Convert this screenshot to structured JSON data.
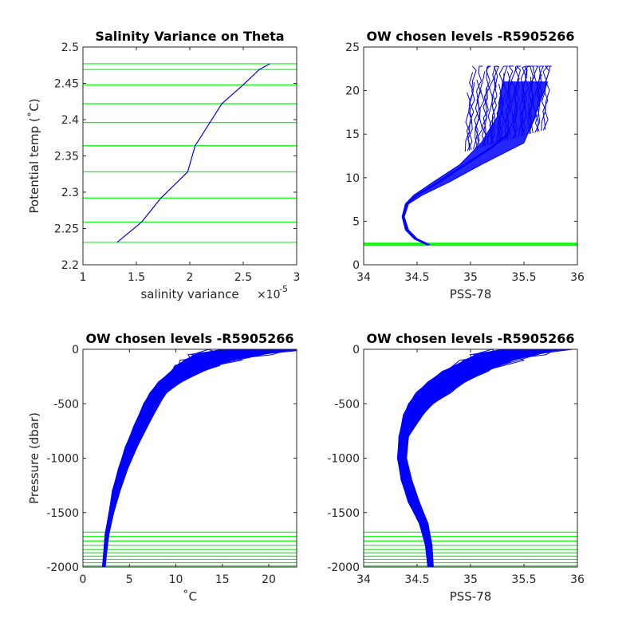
{
  "chart_data": [
    {
      "id": "panel1",
      "type": "line",
      "title": "Salinity Variance on Theta",
      "xlabel": "salinity variance",
      "x_exponent_label": "×10",
      "x_exponent": "-5",
      "ylabel": "Potential temp (˚C)",
      "xlim": [
        1,
        3
      ],
      "ylim": [
        2.2,
        2.5
      ],
      "xticks": [
        1,
        1.5,
        2,
        2.5,
        3
      ],
      "xtick_labels": [
        "1",
        "1.5",
        "2",
        "2.5",
        "3"
      ],
      "yticks": [
        2.2,
        2.25,
        2.3,
        2.35,
        2.4,
        2.45,
        2.5
      ],
      "ytick_labels": [
        "2.2",
        "2.25",
        "2.3",
        "2.35",
        "2.4",
        "2.45",
        "2.5"
      ],
      "series_color": "#0000ff",
      "level_color": "#00ff00",
      "x": [
        1.32,
        1.55,
        1.73,
        1.98,
        2.05,
        2.3,
        2.5,
        2.65,
        2.75
      ],
      "y": [
        2.231,
        2.259,
        2.292,
        2.328,
        2.364,
        2.422,
        2.448,
        2.469,
        2.477
      ],
      "level_lines": [
        2.231,
        2.259,
        2.292,
        2.328,
        2.364,
        2.396,
        2.422,
        2.448,
        2.469,
        2.477
      ]
    },
    {
      "id": "panel2",
      "type": "line",
      "title": "OW chosen levels -R5905266",
      "xlabel": "PSS-78",
      "ylabel": "",
      "xlim": [
        34,
        36
      ],
      "ylim": [
        0,
        25
      ],
      "xticks": [
        34,
        34.5,
        35,
        35.5,
        36
      ],
      "xtick_labels": [
        "34",
        "34.5",
        "35",
        "35.5",
        "36"
      ],
      "yticks": [
        0,
        5,
        10,
        15,
        20,
        25
      ],
      "ytick_labels": [
        "0",
        "5",
        "10",
        "15",
        "20",
        "25"
      ],
      "series_color": "#0000ff",
      "level_color": "#00ff00",
      "x": [
        34.6,
        34.48,
        34.4,
        34.37,
        34.4,
        34.5,
        34.7,
        34.95,
        35.2,
        35.35
      ],
      "y": [
        2.3,
        3.0,
        4.0,
        5.5,
        7.0,
        8.0,
        9.5,
        11.5,
        13.5,
        15.0
      ],
      "envelope": {
        "min_x": [
          34.6,
          34.47,
          34.39,
          34.36,
          34.39,
          34.47,
          34.65,
          34.9,
          35.1,
          35.25,
          35.3
        ],
        "max_x": [
          34.62,
          34.5,
          34.42,
          34.38,
          34.42,
          34.55,
          34.8,
          35.1,
          35.5,
          35.6,
          35.72
        ],
        "y": [
          2.3,
          3.0,
          4.0,
          5.5,
          7.0,
          8.0,
          9.5,
          11.5,
          14.0,
          17.0,
          21.0
        ],
        "spread_top": [
          34.95,
          35.75,
          15.5,
          23.0
        ]
      },
      "level_lines": [
        2.23,
        2.26,
        2.29,
        2.33,
        2.36,
        2.4,
        2.42,
        2.45,
        2.47,
        2.48
      ]
    },
    {
      "id": "panel3",
      "type": "line",
      "title": "OW chosen levels -R5905266",
      "xlabel": "˚C",
      "ylabel": "Pressure (dbar)",
      "xlim": [
        0,
        23
      ],
      "ylim": [
        -2000,
        0
      ],
      "xticks": [
        0,
        5,
        10,
        15,
        20
      ],
      "xtick_labels": [
        "0",
        "5",
        "10",
        "15",
        "20"
      ],
      "yticks": [
        -2000,
        -1500,
        -1000,
        -500,
        0
      ],
      "ytick_labels": [
        "-2000",
        "-1500",
        "-1000",
        "-500",
        "0"
      ],
      "series_color": "#0000ff",
      "level_color": "#00ff00",
      "envelope": {
        "p": [
          0,
          -50,
          -100,
          -150,
          -200,
          -300,
          -400,
          -500,
          -700,
          -900,
          -1100,
          -1300,
          -1500,
          -1700,
          -1900,
          -2000
        ],
        "min_x": [
          15,
          12,
          11,
          10,
          9.5,
          8.2,
          7.2,
          6.6,
          5.5,
          4.6,
          3.8,
          3.2,
          2.8,
          2.4,
          2.2,
          2.1
        ],
        "max_x": [
          23,
          19,
          16,
          14.5,
          13,
          10.5,
          9,
          8.2,
          7.0,
          5.8,
          4.8,
          4.0,
          3.3,
          2.8,
          2.5,
          2.4
        ]
      },
      "level_lines": [
        -1680,
        -1720,
        -1760,
        -1800,
        -1840,
        -1870,
        -1900,
        -1930,
        -1960,
        -1990
      ]
    },
    {
      "id": "panel4",
      "type": "line",
      "title": "OW chosen levels -R5905266",
      "xlabel": "PSS-78",
      "ylabel": "",
      "xlim": [
        34,
        36
      ],
      "ylim": [
        -2000,
        0
      ],
      "xticks": [
        34,
        34.5,
        35,
        35.5,
        36
      ],
      "xtick_labels": [
        "34",
        "34.5",
        "35",
        "35.5",
        "36"
      ],
      "yticks": [
        -2000,
        -1500,
        -1000,
        -500,
        0
      ],
      "ytick_labels": [
        "-2000",
        "-1500",
        "-1000",
        "-500",
        "0"
      ],
      "series_color": "#0000ff",
      "level_color": "#00ff00",
      "envelope": {
        "p": [
          0,
          -50,
          -100,
          -200,
          -300,
          -400,
          -500,
          -600,
          -800,
          -1000,
          -1200,
          -1400,
          -1600,
          -1800,
          -2000
        ],
        "min_x": [
          35.3,
          35.05,
          34.95,
          34.75,
          34.6,
          34.5,
          34.42,
          34.38,
          34.33,
          34.32,
          34.35,
          34.42,
          34.52,
          34.58,
          34.6
        ],
        "max_x": [
          35.85,
          35.6,
          35.4,
          35.15,
          34.95,
          34.8,
          34.65,
          34.55,
          34.42,
          34.4,
          34.45,
          34.52,
          34.6,
          34.64,
          34.65
        ]
      },
      "level_lines": [
        -1680,
        -1720,
        -1760,
        -1800,
        -1840,
        -1870,
        -1900,
        -1930,
        -1960,
        -1990
      ]
    }
  ]
}
